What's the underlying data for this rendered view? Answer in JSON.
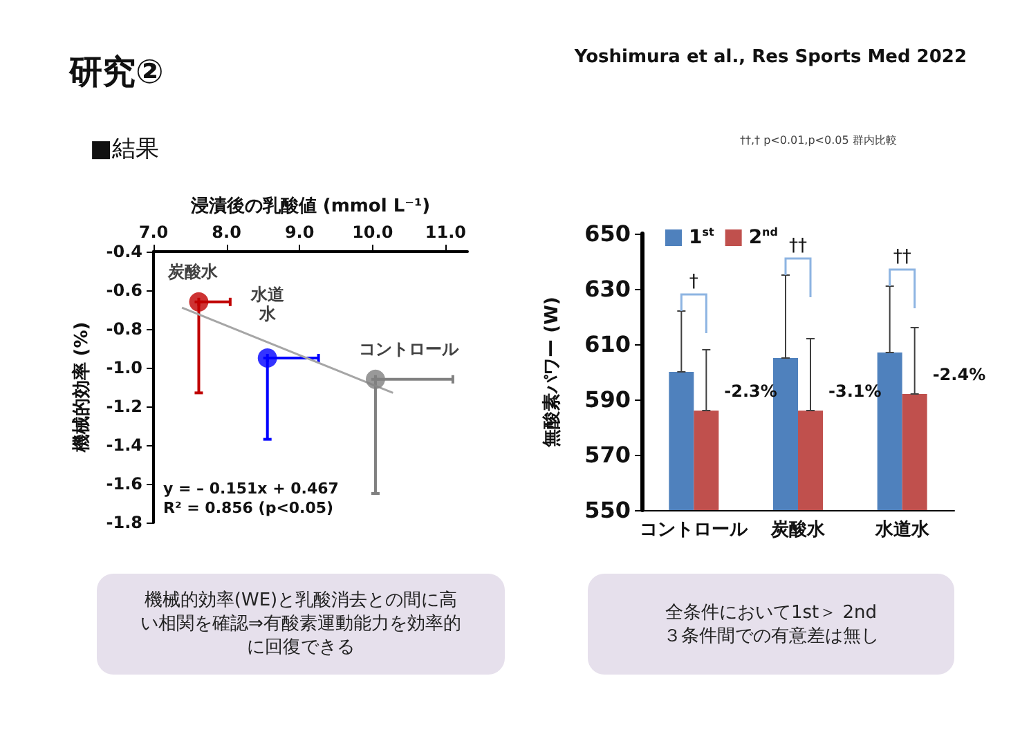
{
  "chart_data": [
    {
      "type": "other",
      "title": "研究②",
      "subtitle": "Yoshimura et al., Res Sports Med 2022",
      "annotations": [
        "■結果"
      ]
    },
    {
      "type": "scatter",
      "xlabel": "浸漬後の乳酸値 (mmol L⁻¹)",
      "ylabel": "機械的効率 (%)",
      "xlim": [
        7.0,
        11.3
      ],
      "xticks": [
        {
          "value": 7,
          "label": "7.0"
        },
        {
          "value": 8,
          "label": "8.0"
        },
        {
          "value": 9,
          "label": "9.0"
        },
        {
          "value": 10,
          "label": "10.0"
        },
        {
          "value": 11,
          "label": "11.0"
        }
      ],
      "ylim": [
        -1.8,
        -0.4
      ],
      "yticks": [
        -1.8,
        -1.6,
        -1.4,
        -1.2,
        {
          "value": -1,
          "label": "-1.0"
        },
        -0.8,
        -0.6,
        -0.4
      ],
      "grid": false,
      "legend": false,
      "series": [
        {
          "name": "炭酸水",
          "color": "#c00000",
          "marker": "circle",
          "x": [
            7.62
          ],
          "values": [
            -0.66
          ],
          "errors": [
            [
              -1.13,
              -0.66
            ]
          ],
          "xerrors": [
            [
              7.62,
              8.05
            ]
          ]
        },
        {
          "name": "水道水",
          "color": "#0000ff",
          "marker": "circle",
          "x": [
            8.56
          ],
          "values": [
            -0.95
          ],
          "errors": [
            [
              -1.37,
              -0.95
            ]
          ],
          "xerrors": [
            [
              8.56,
              9.26
            ]
          ]
        },
        {
          "name": "コントロール",
          "color": "#808080",
          "marker": "circle",
          "x": [
            10.04
          ],
          "values": [
            -1.06
          ],
          "errors": [
            [
              -1.65,
              -1.06
            ]
          ],
          "xerrors": [
            [
              10.04,
              11.1
            ]
          ]
        },
        {
          "type": "line",
          "color": "#a6a6a6",
          "marker": "none",
          "x": [
            7.39,
            10.28
          ],
          "values": [
            -0.69,
            -1.13
          ]
        }
      ],
      "annotations": [
        "y = – 0.151x + 0.467",
        "R² = 0.856 (p<0.05)",
        "機械的効率(WE)と乳酸消去との間に高い相関を確認⇒有酸素運動能力を効率的に回復できる"
      ]
    },
    {
      "type": "bar",
      "ylabel": "無酸素パワー (W)",
      "categories": [
        "コントロール",
        "炭酸水",
        "水道水"
      ],
      "ylim": [
        550,
        650
      ],
      "yticks": [
        550,
        570,
        590,
        610,
        630,
        650
      ],
      "grid": false,
      "legend": "top left",
      "series": [
        {
          "name": "1$^{st}$",
          "color": "#4f81bd",
          "values": [
            600,
            605,
            607
          ],
          "errors": [
            [
              600,
              622
            ],
            [
              605,
              635
            ],
            [
              607,
              631
            ]
          ]
        },
        {
          "name": "2$^{nd}$",
          "color": "#c0504d",
          "values": [
            586,
            586,
            592
          ],
          "errors": [
            [
              586,
              608
            ],
            [
              586,
              612
            ],
            [
              592,
              616
            ]
          ]
        }
      ],
      "annotations": [
        "††,†  p<0.01,p<0.05 群内比較",
        "†",
        "††",
        "††",
        {
          "text": "-2.3%",
          "x": "コントロール",
          "y": 586
        },
        {
          "text": "-3.1%",
          "x": "炭酸水",
          "y": 586
        },
        {
          "text": "-2.4%",
          "x": "水道水",
          "y": 592
        },
        "全条件において1st＞ 2nd\n３条件間での有意差は無し"
      ]
    }
  ]
}
